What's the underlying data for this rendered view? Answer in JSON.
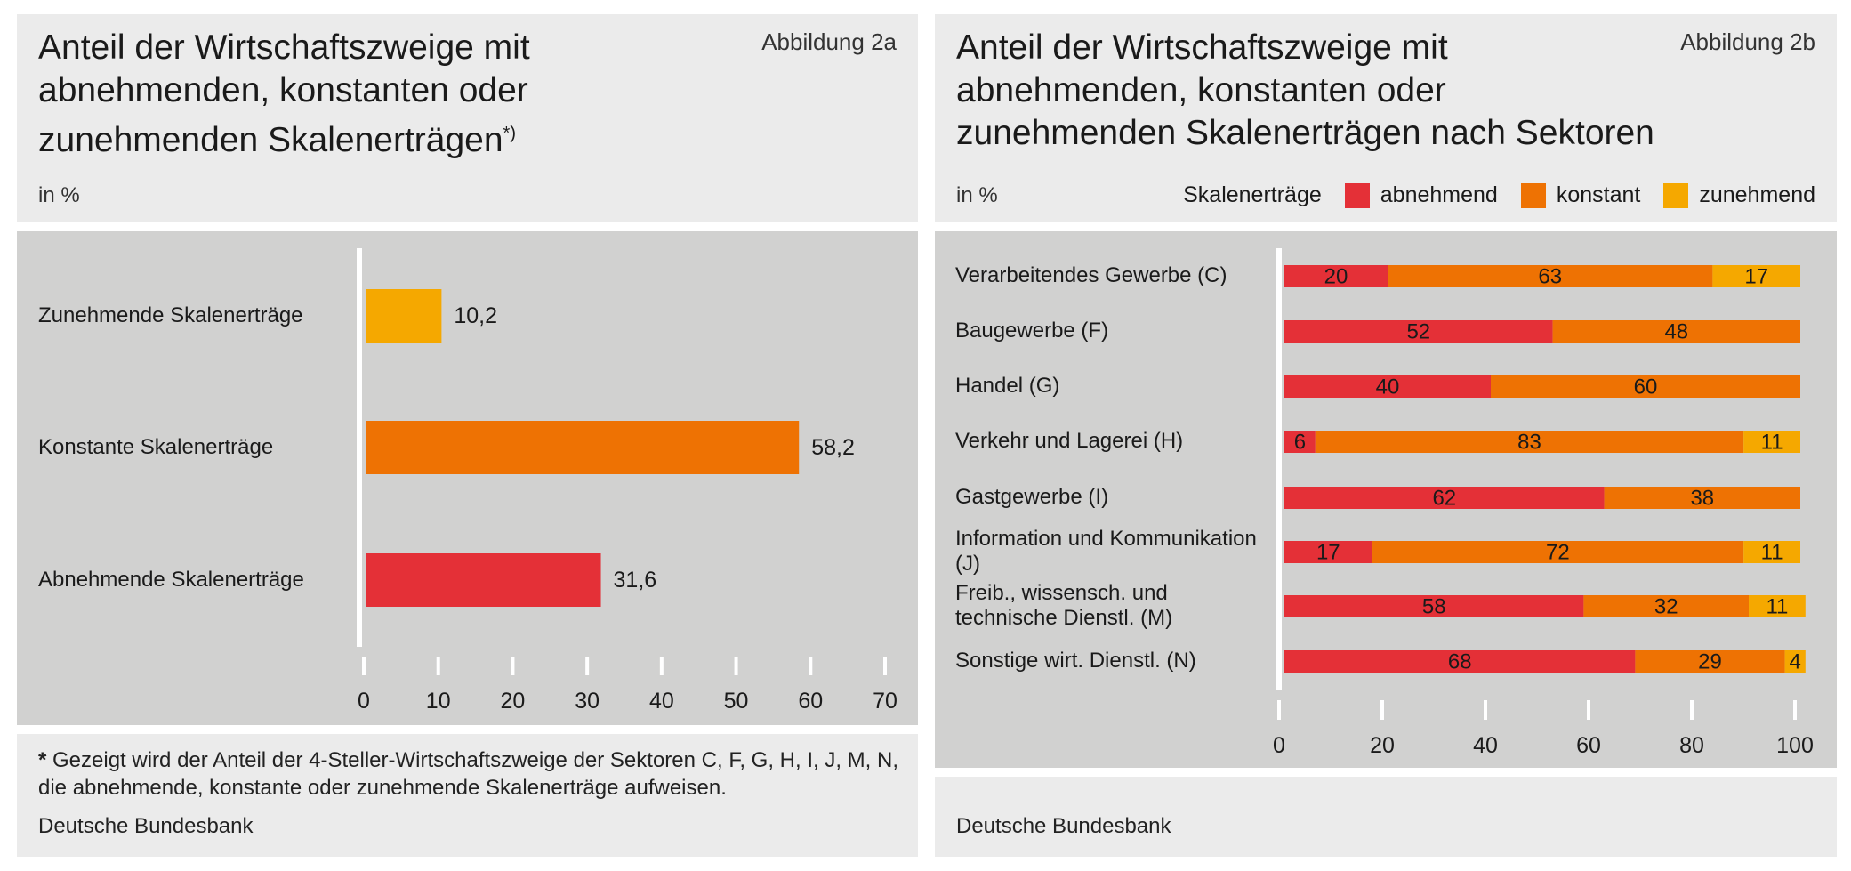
{
  "left": {
    "title": "Anteil der Wirtschaftszweige mit abnehmenden, konstanten oder zunehmenden Skalenerträgen",
    "title_mark": "*)",
    "figure": "Abbildung 2a",
    "unit": "in %",
    "footnote_mark": "*",
    "footnote": "Gezeigt wird der Anteil der 4-Steller-Wirtschaftszweige der Sektoren C, F, G, H, I, J, M, N, die abnehmende, konstante oder zunehmende Skalenerträge aufweisen.",
    "source": "Deutsche Bundesbank"
  },
  "right": {
    "title": "Anteil der Wirtschaftszweige mit abnehmenden, konstanten oder zunehmenden Skalenerträgen nach Sektoren",
    "figure": "Abbildung 2b",
    "unit": "in %",
    "legend_title": "Skalenerträge",
    "source": "Deutsche Bundesbank"
  },
  "chart_data": [
    {
      "type": "bar",
      "orientation": "horizontal",
      "categories": [
        "Zunehmende Skalenerträge",
        "Konstante Skalenerträge",
        "Abnehmende Skalenerträge"
      ],
      "values": [
        10.2,
        58.2,
        31.6
      ],
      "data_labels": [
        "10,2",
        "58,2",
        "31,6"
      ],
      "colors": [
        "#f5a800",
        "#ee7203",
        "#e43037"
      ],
      "xlim": [
        0,
        70
      ],
      "xticks": [
        "0",
        "10",
        "20",
        "30",
        "40",
        "50",
        "60",
        "70"
      ]
    },
    {
      "type": "bar",
      "orientation": "horizontal",
      "stacked": true,
      "categories": [
        "Verarbeitendes Gewerbe (C)",
        "Baugewerbe (F)",
        "Handel (G)",
        "Verkehr und Lagerei (H)",
        "Gastgewerbe (I)",
        "Information und Kommunikation (J)",
        "Freib., wissensch. und technische Dienstl. (M)",
        "Sonstige wirt. Dienstl. (N)"
      ],
      "series": [
        {
          "name": "abnehmend",
          "color": "#e43037",
          "values": [
            20,
            52,
            40,
            6,
            62,
            17,
            58,
            68
          ]
        },
        {
          "name": "konstant",
          "color": "#ee7203",
          "values": [
            63,
            48,
            60,
            83,
            38,
            72,
            32,
            29
          ]
        },
        {
          "name": "zunehmend",
          "color": "#f5a800",
          "values": [
            17,
            0,
            0,
            11,
            0,
            11,
            11,
            4
          ]
        }
      ],
      "xlim": [
        0,
        100
      ],
      "xticks": [
        "0",
        "20",
        "40",
        "60",
        "80",
        "100"
      ]
    }
  ]
}
